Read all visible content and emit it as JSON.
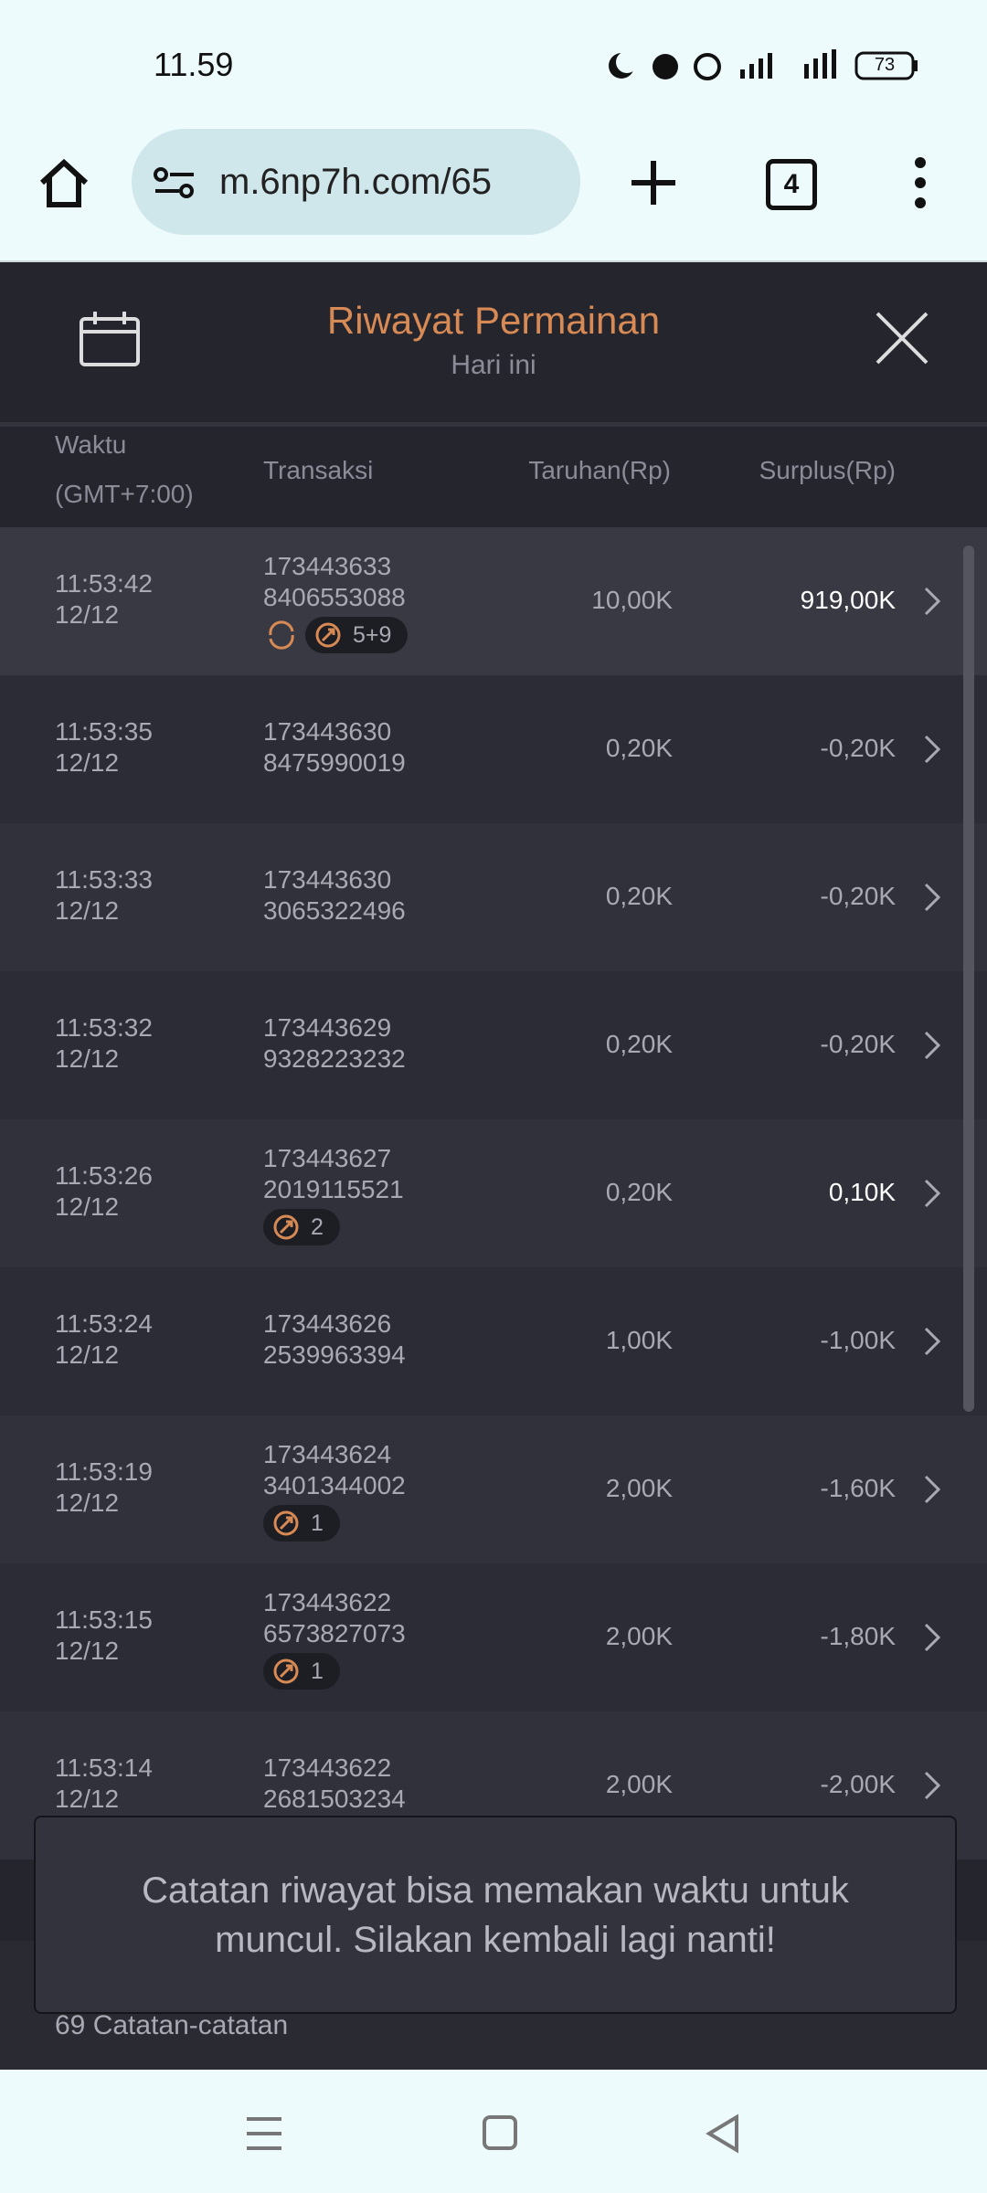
{
  "status_bar": {
    "time": "11.59",
    "battery": "73"
  },
  "browser": {
    "url": "m.6np7h.com/65",
    "tab_count": "4"
  },
  "header": {
    "title": "Riwayat Permainan",
    "subtitle": "Hari ini"
  },
  "table": {
    "columns": [
      "Waktu",
      "(GMT+7:00)",
      "Transaksi",
      "Taruhan(Rp)",
      "Surplus(Rp)"
    ],
    "rows": [
      {
        "time": "11:53:42",
        "date": "12/12",
        "id_1": "173443633",
        "id_2": "8406553088",
        "badge": "5+9",
        "bet": "10,00K",
        "surplus": "919,00K"
      },
      {
        "time": "11:53:35",
        "date": "12/12",
        "id_1": "173443630",
        "id_2": "8475990019",
        "bet": "0,20K",
        "surplus": "-0,20K"
      },
      {
        "time": "11:53:33",
        "date": "12/12",
        "id_1": "173443630",
        "id_2": "3065322496",
        "bet": "0,20K",
        "surplus": "-0,20K"
      },
      {
        "time": "11:53:32",
        "date": "12/12",
        "id_1": "173443629",
        "id_2": "9328223232",
        "bet": "0,20K",
        "surplus": "-0,20K"
      },
      {
        "time": "11:53:26",
        "date": "12/12",
        "id_1": "173443627",
        "id_2": "2019115521",
        "badge": "2",
        "bet": "0,20K",
        "surplus": "0,10K"
      },
      {
        "time": "11:53:24",
        "date": "12/12",
        "id_1": "173443626",
        "id_2": "2539963394",
        "bet": "1,00K",
        "surplus": "-1,00K"
      },
      {
        "time": "11:53:19",
        "date": "12/12",
        "id_1": "173443624",
        "id_2": "3401344002",
        "badge": "1",
        "bet": "2,00K",
        "surplus": "-1,60K"
      },
      {
        "time": "11:53:15",
        "date": "12/12",
        "id_1": "173443622",
        "id_2": "6573827073",
        "badge": "1",
        "bet": "2,00K",
        "surplus": "-1,80K"
      },
      {
        "time": "11:53:14",
        "date": "12/12",
        "id_1": "173443622",
        "id_2": "2681503234",
        "bet": "2,00K",
        "surplus": "-2,00K"
      }
    ]
  },
  "toast": "Catatan riwayat bisa memakan waktu untuk muncul. Silakan kembali lagi nanti!",
  "footer": "69 Catatan-catatan"
}
